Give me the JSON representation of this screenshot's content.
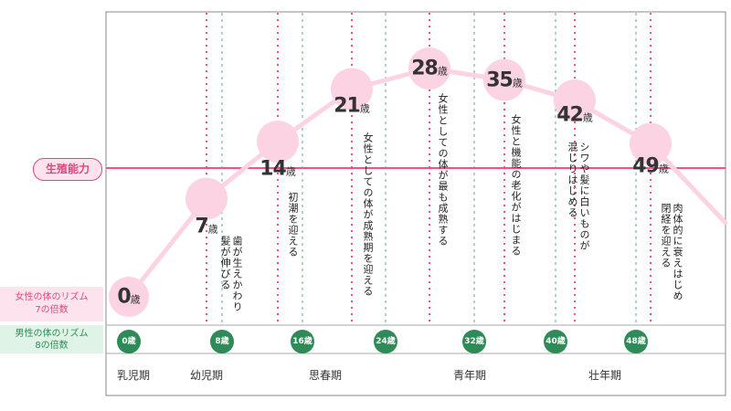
{
  "labels": {
    "fertility": "生殖能力",
    "female_rhythm": [
      "女性の体のリズム",
      "7の倍数"
    ],
    "male_rhythm": [
      "男性の体のリズム",
      "8の倍数"
    ]
  },
  "female_ages": [
    {
      "age": "0",
      "unit": "歳",
      "fertility_level": 0.0,
      "note": ""
    },
    {
      "age": "7",
      "unit": "歳",
      "fertility_level": 0.43,
      "note": "歯が生えかわり\n髪が伸びる"
    },
    {
      "age": "14",
      "unit": "歳",
      "fertility_level": 0.68,
      "note": "初潮を迎える"
    },
    {
      "age": "21",
      "unit": "歳",
      "fertility_level": 0.91,
      "note": "女性としての体が成熟期を迎える"
    },
    {
      "age": "28",
      "unit": "歳",
      "fertility_level": 1.0,
      "note": "女性としての体が最も成熟する"
    },
    {
      "age": "35",
      "unit": "歳",
      "fertility_level": 0.95,
      "note": "女性と機能の老化がはじまる"
    },
    {
      "age": "42",
      "unit": "歳",
      "fertility_level": 0.86,
      "note": "シワや髪に白いものが\n混じりはじめる"
    },
    {
      "age": "49",
      "unit": "歳",
      "fertility_level": 0.67,
      "note": "肉体的に衰えはじめ\n閉経を迎える"
    }
  ],
  "male_ages": [
    {
      "age": "0",
      "unit": "歳"
    },
    {
      "age": "8",
      "unit": "歳"
    },
    {
      "age": "16",
      "unit": "歳"
    },
    {
      "age": "24",
      "unit": "歳"
    },
    {
      "age": "32",
      "unit": "歳"
    },
    {
      "age": "40",
      "unit": "歳"
    },
    {
      "age": "48",
      "unit": "歳"
    }
  ],
  "stages": [
    {
      "label": "乳児期"
    },
    {
      "label": "幼児期"
    },
    {
      "label": "思春期"
    },
    {
      "label": "青年期"
    },
    {
      "label": "壮年期"
    }
  ],
  "colors": {
    "pink": "#f4508a",
    "pink_light": "#fcd3e3",
    "green": "#2e8b57",
    "teal_dash": "#5aa7a0",
    "frame": "#888888"
  }
}
